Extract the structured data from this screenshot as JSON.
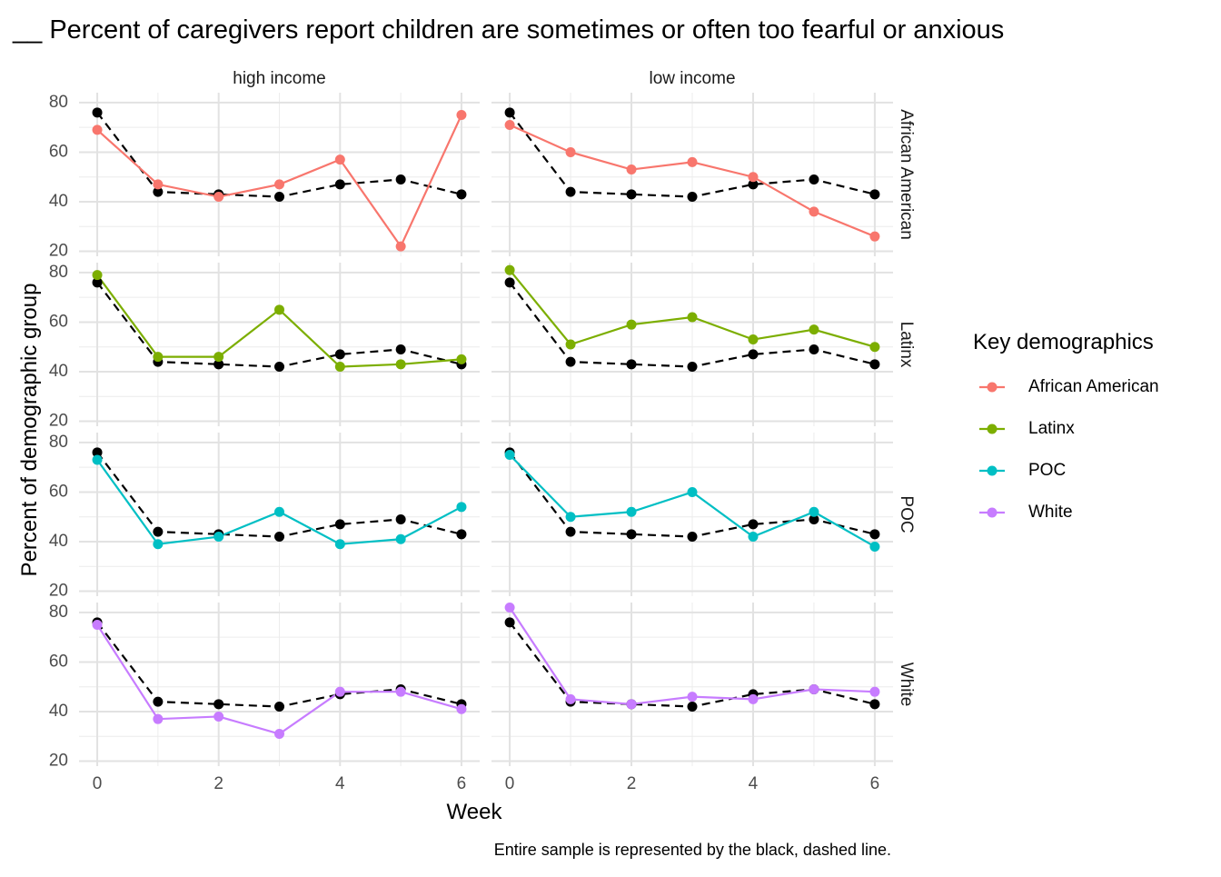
{
  "chart_data": {
    "type": "line",
    "title": "__ Percent of caregivers report children are sometimes or often too fearful or anxious",
    "xlabel": "Week",
    "ylabel": "Percent of demographic group",
    "caption": "Entire sample is represented by the black, dashed line.",
    "facet_columns": [
      "high income",
      "low income"
    ],
    "facet_rows": [
      "African American",
      "Latinx",
      "POC",
      "White"
    ],
    "x": [
      0,
      1,
      2,
      3,
      4,
      5,
      6
    ],
    "x_ticks": [
      "0",
      "2",
      "4",
      "6"
    ],
    "y_ticks": [
      "20",
      "40",
      "60",
      "80"
    ],
    "xlim": [
      -0.3,
      6.3
    ],
    "ylim": [
      18,
      84
    ],
    "grid": true,
    "legend": {
      "title": "Key demographics",
      "position": "right",
      "items": [
        "African American",
        "Latinx",
        "POC",
        "White"
      ]
    },
    "colors": {
      "African American": "#F8766D",
      "Latinx": "#7CAE00",
      "POC": "#00BFC4",
      "White": "#C77CFF",
      "Entire sample": "#000000"
    },
    "reference_series": {
      "high income": [
        76,
        44,
        43,
        42,
        47,
        49,
        43
      ],
      "low income": [
        76,
        44,
        43,
        42,
        47,
        49,
        43
      ]
    },
    "panels": [
      {
        "row": "African American",
        "col": "high income",
        "values": [
          69,
          47,
          42,
          47,
          57,
          22,
          75
        ]
      },
      {
        "row": "African American",
        "col": "low income",
        "values": [
          71,
          60,
          53,
          56,
          50,
          36,
          26
        ]
      },
      {
        "row": "Latinx",
        "col": "high income",
        "values": [
          79,
          46,
          46,
          65,
          42,
          43,
          45
        ]
      },
      {
        "row": "Latinx",
        "col": "low income",
        "values": [
          81,
          51,
          59,
          62,
          53,
          57,
          50
        ]
      },
      {
        "row": "POC",
        "col": "high income",
        "values": [
          73,
          39,
          42,
          52,
          39,
          41,
          54
        ]
      },
      {
        "row": "POC",
        "col": "low income",
        "values": [
          75,
          50,
          52,
          60,
          42,
          52,
          38
        ]
      },
      {
        "row": "White",
        "col": "high income",
        "values": [
          75,
          37,
          38,
          31,
          48,
          48,
          41
        ]
      },
      {
        "row": "White",
        "col": "low income",
        "values": [
          82,
          45,
          43,
          46,
          45,
          49,
          48
        ]
      }
    ]
  }
}
